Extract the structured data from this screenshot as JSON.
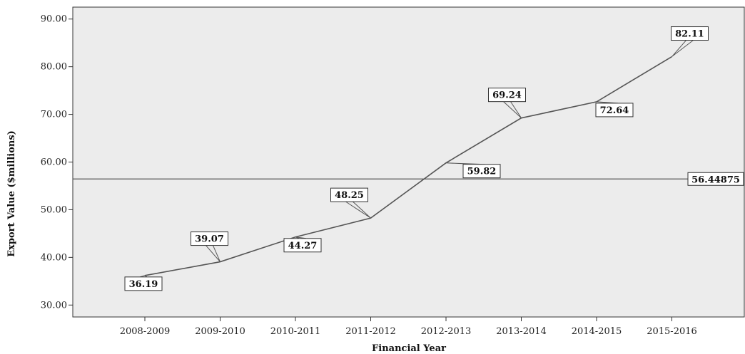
{
  "chart_data": {
    "type": "line",
    "title": "",
    "xlabel": "Financial Year",
    "ylabel": "Export Value ($millions)",
    "categories": [
      "2008-2009",
      "2009-2010",
      "2010-2011",
      "2011-2012",
      "2012-2013",
      "2013-2014",
      "2014-2015",
      "2015-2016"
    ],
    "series": [
      {
        "values": [
          36.19,
          39.07,
          44.27,
          48.25,
          59.82,
          69.24,
          72.64,
          82.11
        ],
        "data_labels": [
          "36.19",
          "39.07",
          "44.27",
          "48.25",
          "59.82",
          "69.24",
          "72.64",
          "82.11"
        ],
        "color": "#555555"
      }
    ],
    "reference_line": {
      "value": 56.44875,
      "label": "56.44875",
      "color": "#555555"
    },
    "ylim": [
      27.5,
      92.5
    ],
    "yticks": [
      30,
      40,
      50,
      60,
      70,
      80,
      90
    ],
    "ytick_labels": [
      "30.00",
      "40.00",
      "50.00",
      "60.00",
      "70.00",
      "80.00",
      "90.00"
    ],
    "grid": false,
    "legend": "none",
    "plot_background": "#ececec"
  }
}
